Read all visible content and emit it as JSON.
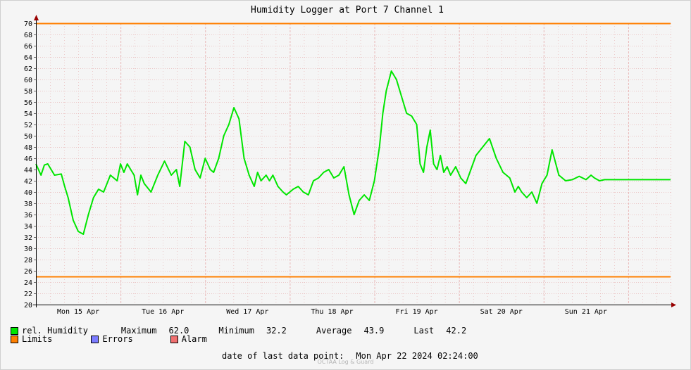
{
  "chart_data": {
    "type": "line",
    "title": "Humidity Logger at Port 7 Channel 1",
    "ylim": [
      20,
      70
    ],
    "y_ticks": [
      20,
      22,
      24,
      26,
      28,
      30,
      32,
      34,
      36,
      38,
      40,
      42,
      44,
      46,
      48,
      50,
      52,
      54,
      56,
      58,
      60,
      62,
      64,
      66,
      68,
      70
    ],
    "x_range": [
      0,
      7.5
    ],
    "x_tick_labels": [
      "Mon 15 Apr",
      "Tue 16 Apr",
      "Wed 17 Apr",
      "Thu 18 Apr",
      "Fri 19 Apr",
      "Sat 20 Apr",
      "Sun 21 Apr"
    ],
    "limits": [
      70,
      25
    ],
    "series": [
      {
        "name": "rel. Humidity",
        "x": [
          0.0,
          0.06,
          0.1,
          0.14,
          0.22,
          0.3,
          0.34,
          0.38,
          0.44,
          0.5,
          0.56,
          0.62,
          0.68,
          0.74,
          0.8,
          0.88,
          0.96,
          1.0,
          1.04,
          1.08,
          1.12,
          1.16,
          1.2,
          1.24,
          1.28,
          1.36,
          1.44,
          1.52,
          1.6,
          1.66,
          1.7,
          1.76,
          1.82,
          1.88,
          1.94,
          2.0,
          2.06,
          2.1,
          2.16,
          2.22,
          2.28,
          2.34,
          2.4,
          2.46,
          2.52,
          2.58,
          2.62,
          2.66,
          2.72,
          2.76,
          2.8,
          2.86,
          2.92,
          2.96,
          3.0,
          3.04,
          3.1,
          3.16,
          3.22,
          3.28,
          3.34,
          3.4,
          3.46,
          3.52,
          3.58,
          3.64,
          3.7,
          3.76,
          3.82,
          3.88,
          3.94,
          4.0,
          4.06,
          4.1,
          4.14,
          4.2,
          4.26,
          4.32,
          4.38,
          4.44,
          4.5,
          4.54,
          4.58,
          4.62,
          4.66,
          4.7,
          4.74,
          4.78,
          4.82,
          4.86,
          4.9,
          4.96,
          5.02,
          5.08,
          5.14,
          5.2,
          5.28,
          5.36,
          5.44,
          5.52,
          5.6,
          5.66,
          5.7,
          5.74,
          5.8,
          5.86,
          5.92,
          5.98,
          6.04,
          6.1,
          6.18,
          6.26,
          6.34,
          6.42,
          6.5,
          6.56,
          6.6,
          6.66,
          6.72,
          6.78,
          6.84,
          6.88,
          6.92,
          6.98,
          7.04,
          7.1,
          7.14,
          7.18,
          7.24,
          7.28,
          7.32,
          7.38,
          7.44,
          7.5
        ],
        "y": [
          45.0,
          43.0,
          44.8,
          45.0,
          43.0,
          43.2,
          41.0,
          39.0,
          35.0,
          33.0,
          32.5,
          36.0,
          39.0,
          40.5,
          40.0,
          43.0,
          42.0,
          45.0,
          43.5,
          45.0,
          44.0,
          43.0,
          39.5,
          43.0,
          41.5,
          40.0,
          43.0,
          45.5,
          43.0,
          44.0,
          41.0,
          49.0,
          48.0,
          44.0,
          42.5,
          46.0,
          44.0,
          43.5,
          46.0,
          50.0,
          52.0,
          55.0,
          53.0,
          46.0,
          43.0,
          41.0,
          43.5,
          42.0,
          43.0,
          42.0,
          43.0,
          41.0,
          40.0,
          39.5,
          40.0,
          40.5,
          41.0,
          40.0,
          39.5,
          42.0,
          42.5,
          43.5,
          44.0,
          42.5,
          43.0,
          44.5,
          39.5,
          36.0,
          38.5,
          39.5,
          38.5,
          42.0,
          48.0,
          54.0,
          58.0,
          61.5,
          60.0,
          57.0,
          54.0,
          53.5,
          52.0,
          45.0,
          43.5,
          48.0,
          51.0,
          45.0,
          44.0,
          46.5,
          43.5,
          44.5,
          43.0,
          44.5,
          42.5,
          41.5,
          44.0,
          46.5,
          48.0,
          49.5,
          46.0,
          43.5,
          42.5,
          40.0,
          41.0,
          40.0,
          39.0,
          40.0,
          38.0,
          41.5,
          43.0,
          47.5,
          43.0,
          42.0,
          42.2,
          42.8,
          42.2,
          43.0,
          42.5,
          42.0,
          42.2,
          42.2,
          42.2,
          42.2,
          42.2,
          42.2,
          42.2,
          42.2,
          42.2,
          42.2,
          42.2,
          42.2,
          42.2,
          42.2,
          42.2,
          42.2
        ]
      }
    ],
    "colors": {
      "series": "#00e600",
      "limits": "#ff7f00",
      "errors": "#7b7bff",
      "alarm": "#f07070",
      "grid": "#e8b8b8",
      "axis": "#000000",
      "arrow": "#990000"
    }
  },
  "legend": {
    "humidity_label": "rel. Humidity",
    "maximum_label": "Maximum",
    "maximum_value": "62.0",
    "minimum_label": "Minimum",
    "minimum_value": "32.2",
    "average_label": "Average",
    "average_value": "43.9",
    "last_label": "Last",
    "last_value": "42.2",
    "limits_label": "Limits",
    "errors_label": "Errors",
    "alarm_label": "Alarm"
  },
  "footer": {
    "last_data_point_label": "date of last data point:",
    "last_data_point_value": "Mon Apr 22 2024 02:24:00",
    "watermark": "OCTAA Log & Guard"
  }
}
